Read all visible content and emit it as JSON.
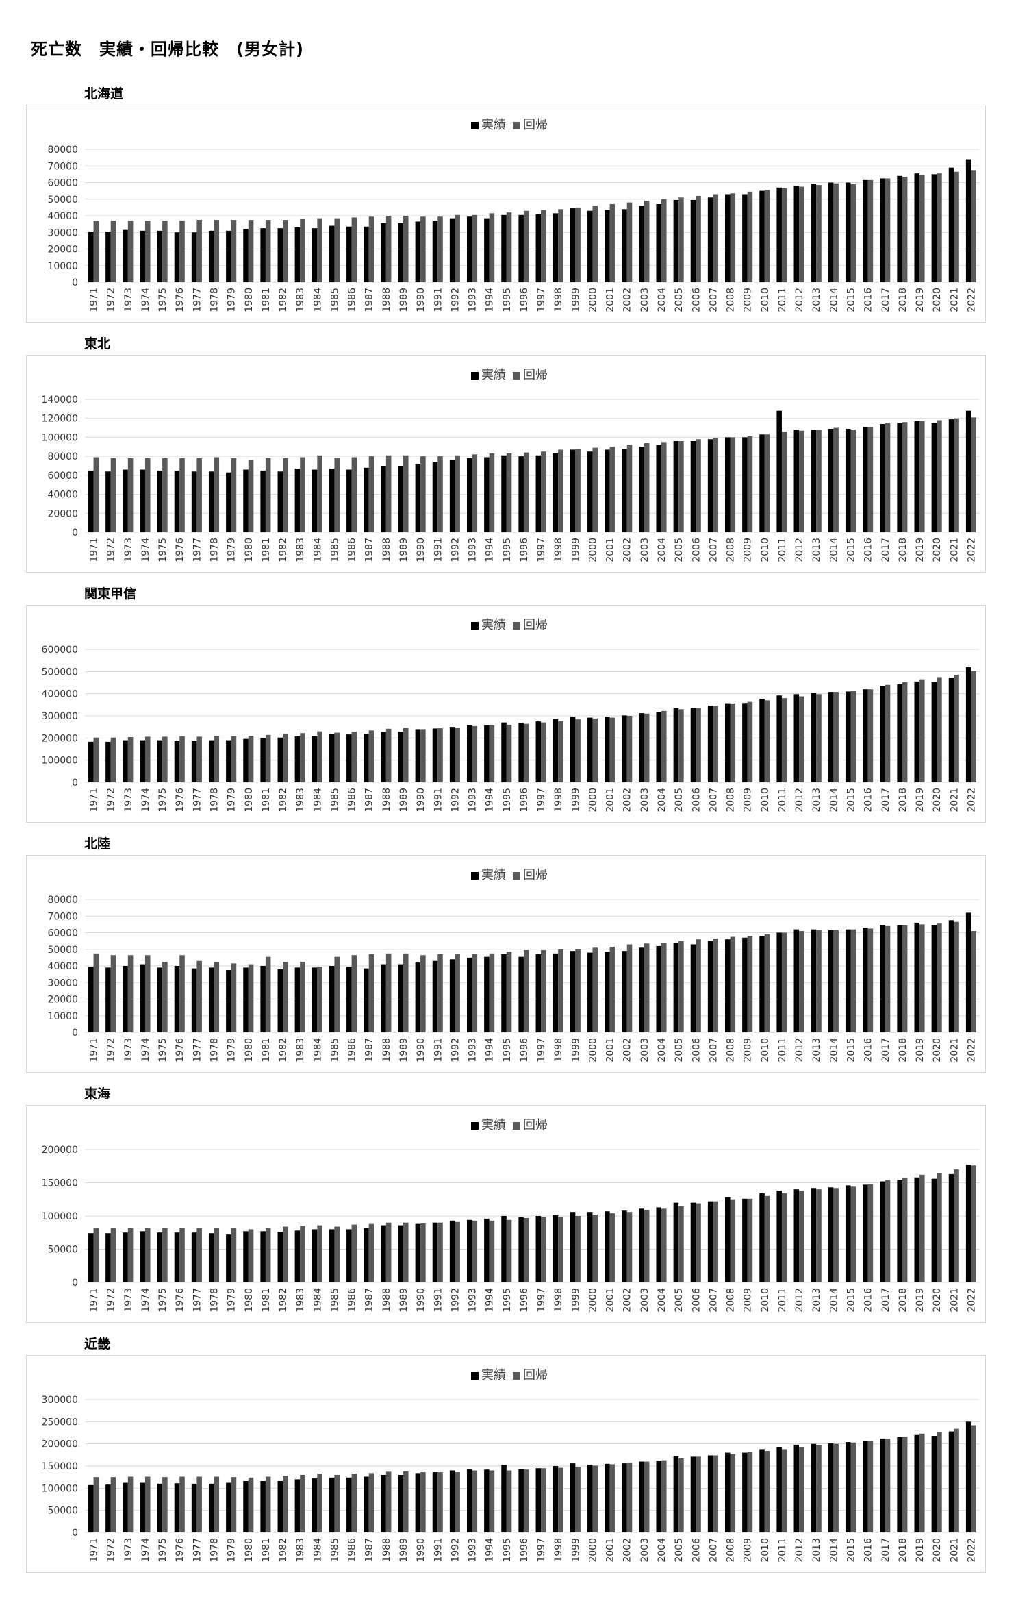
{
  "page_title": "死亡数　実績・回帰比較　(男女計)",
  "colors": {
    "actual": "#000000",
    "regression": "#595959",
    "grid": "#d9d9d9"
  },
  "chart_data": [
    {
      "type": "bar",
      "title": "北海道",
      "legend": [
        "実績",
        "回帰"
      ],
      "categories": [
        1971,
        1972,
        1973,
        1974,
        1975,
        1976,
        1977,
        1978,
        1979,
        1980,
        1981,
        1982,
        1983,
        1984,
        1985,
        1986,
        1987,
        1988,
        1989,
        1990,
        1991,
        1992,
        1993,
        1994,
        1995,
        1996,
        1997,
        1998,
        1999,
        2000,
        2001,
        2002,
        2003,
        2004,
        2005,
        2006,
        2007,
        2008,
        2009,
        2010,
        2011,
        2012,
        2013,
        2014,
        2015,
        2016,
        2017,
        2018,
        2019,
        2020,
        2021,
        2022
      ],
      "yticks": [
        0,
        10000,
        20000,
        30000,
        40000,
        50000,
        60000,
        70000,
        80000
      ],
      "ylim": [
        0,
        80000
      ],
      "series": [
        {
          "name": "実績",
          "values": [
            30500,
            30500,
            31500,
            31000,
            31000,
            30000,
            30000,
            31000,
            31000,
            32000,
            32500,
            32500,
            33000,
            32500,
            34000,
            33500,
            33500,
            35500,
            35500,
            36500,
            37000,
            38500,
            39500,
            38500,
            40500,
            40500,
            41000,
            41500,
            44500,
            43000,
            43500,
            44000,
            46000,
            47000,
            49500,
            49500,
            51000,
            53000,
            53000,
            55000,
            57000,
            58000,
            59000,
            60000,
            60000,
            61500,
            62500,
            64000,
            65500,
            65000,
            69000,
            74000
          ]
        },
        {
          "name": "回帰",
          "values": [
            37000,
            37000,
            37000,
            37000,
            37000,
            37000,
            37500,
            37500,
            37500,
            37500,
            37500,
            37500,
            38000,
            38500,
            38500,
            39000,
            39500,
            40000,
            40000,
            39500,
            39500,
            40500,
            40500,
            41500,
            42000,
            43000,
            43500,
            44000,
            45000,
            46000,
            47000,
            48000,
            49000,
            50000,
            51000,
            52000,
            53000,
            53500,
            54500,
            55500,
            56500,
            57500,
            58500,
            59500,
            59000,
            61500,
            62500,
            63500,
            64500,
            65500,
            66500,
            67500
          ]
        }
      ]
    },
    {
      "type": "bar",
      "title": "東北",
      "legend": [
        "実績",
        "回帰"
      ],
      "categories": [
        1971,
        1972,
        1973,
        1974,
        1975,
        1976,
        1977,
        1978,
        1979,
        1980,
        1981,
        1982,
        1983,
        1984,
        1985,
        1986,
        1987,
        1988,
        1989,
        1990,
        1991,
        1992,
        1993,
        1994,
        1995,
        1996,
        1997,
        1998,
        1999,
        2000,
        2001,
        2002,
        2003,
        2004,
        2005,
        2006,
        2007,
        2008,
        2009,
        2010,
        2011,
        2012,
        2013,
        2014,
        2015,
        2016,
        2017,
        2018,
        2019,
        2020,
        2021,
        2022
      ],
      "yticks": [
        0,
        20000,
        40000,
        60000,
        80000,
        100000,
        120000,
        140000
      ],
      "ylim": [
        0,
        140000
      ],
      "series": [
        {
          "name": "実績",
          "values": [
            65000,
            64000,
            66000,
            66000,
            65000,
            65000,
            64000,
            64000,
            63000,
            66000,
            65000,
            64000,
            67000,
            66000,
            67000,
            66000,
            68000,
            70000,
            70000,
            72000,
            74000,
            76000,
            78000,
            79000,
            81000,
            80000,
            81000,
            83000,
            87000,
            85000,
            87000,
            88000,
            90000,
            92000,
            96000,
            96000,
            98000,
            100000,
            100000,
            103000,
            128000,
            108000,
            108000,
            109000,
            109000,
            111000,
            114000,
            115000,
            117000,
            115000,
            119000,
            128000
          ]
        },
        {
          "name": "回帰",
          "values": [
            79000,
            78000,
            78000,
            78000,
            78000,
            78000,
            78000,
            79000,
            78000,
            76000,
            78000,
            78000,
            79000,
            81000,
            78000,
            79000,
            80000,
            81000,
            81000,
            80000,
            80000,
            81000,
            82000,
            83000,
            83000,
            84000,
            85000,
            87000,
            88000,
            89000,
            90000,
            92000,
            94000,
            95000,
            96000,
            98000,
            99000,
            100000,
            101000,
            103000,
            106000,
            107000,
            108000,
            110000,
            108000,
            111000,
            115000,
            116000,
            117000,
            118000,
            120000,
            121000
          ]
        }
      ]
    },
    {
      "type": "bar",
      "title": "関東甲信",
      "legend": [
        "実績",
        "回帰"
      ],
      "categories": [
        1971,
        1972,
        1973,
        1974,
        1975,
        1976,
        1977,
        1978,
        1979,
        1980,
        1981,
        1982,
        1983,
        1984,
        1985,
        1986,
        1987,
        1988,
        1989,
        1990,
        1991,
        1992,
        1993,
        1994,
        1995,
        1996,
        1997,
        1998,
        1999,
        2000,
        2001,
        2002,
        2003,
        2004,
        2005,
        2006,
        2007,
        2008,
        2009,
        2010,
        2011,
        2012,
        2013,
        2014,
        2015,
        2016,
        2017,
        2018,
        2019,
        2020,
        2021,
        2022
      ],
      "yticks": [
        0,
        100000,
        200000,
        300000,
        400000,
        500000,
        600000
      ],
      "ylim": [
        0,
        600000
      ],
      "series": [
        {
          "name": "実績",
          "values": [
            183000,
            183000,
            190000,
            190000,
            190000,
            188000,
            188000,
            190000,
            190000,
            196000,
            200000,
            202000,
            208000,
            210000,
            218000,
            216000,
            219000,
            228000,
            228000,
            240000,
            243000,
            250000,
            258000,
            257000,
            270000,
            268000,
            275000,
            285000,
            297000,
            292000,
            297000,
            302000,
            312000,
            318000,
            335000,
            337000,
            346000,
            357000,
            358000,
            377000,
            392000,
            398000,
            404000,
            408000,
            410000,
            420000,
            435000,
            443000,
            455000,
            452000,
            472000,
            520000
          ]
        },
        {
          "name": "回帰",
          "values": [
            202000,
            202000,
            204000,
            206000,
            206000,
            208000,
            206000,
            210000,
            208000,
            210000,
            214000,
            218000,
            222000,
            230000,
            224000,
            228000,
            234000,
            242000,
            246000,
            240000,
            244000,
            246000,
            254000,
            258000,
            260000,
            264000,
            270000,
            276000,
            284000,
            288000,
            292000,
            300000,
            310000,
            322000,
            330000,
            334000,
            345000,
            356000,
            363000,
            370000,
            380000,
            388000,
            398000,
            408000,
            414000,
            420000,
            440000,
            452000,
            465000,
            475000,
            485000,
            502000
          ]
        }
      ]
    },
    {
      "type": "bar",
      "title": "北陸",
      "legend": [
        "実績",
        "回帰"
      ],
      "categories": [
        1971,
        1972,
        1973,
        1974,
        1975,
        1976,
        1977,
        1978,
        1979,
        1980,
        1981,
        1982,
        1983,
        1984,
        1985,
        1986,
        1987,
        1988,
        1989,
        1990,
        1991,
        1992,
        1993,
        1994,
        1995,
        1996,
        1997,
        1998,
        1999,
        2000,
        2001,
        2002,
        2003,
        2004,
        2005,
        2006,
        2007,
        2008,
        2009,
        2010,
        2011,
        2012,
        2013,
        2014,
        2015,
        2016,
        2017,
        2018,
        2019,
        2020,
        2021,
        2022
      ],
      "yticks": [
        0,
        10000,
        20000,
        30000,
        40000,
        50000,
        60000,
        70000,
        80000
      ],
      "ylim": [
        0,
        80000
      ],
      "series": [
        {
          "name": "実績",
          "values": [
            39500,
            39000,
            40000,
            41000,
            39000,
            40000,
            38500,
            39000,
            37500,
            39000,
            40000,
            38000,
            39000,
            39000,
            40000,
            39500,
            38500,
            41000,
            41000,
            42000,
            43000,
            44000,
            45000,
            45500,
            47000,
            45500,
            47000,
            47500,
            49000,
            48000,
            48500,
            49000,
            51000,
            52000,
            54000,
            53000,
            55000,
            56000,
            57000,
            58000,
            60000,
            62000,
            62000,
            61500,
            62000,
            63000,
            64500,
            64500,
            66000,
            64500,
            67500,
            72000
          ]
        },
        {
          "name": "回帰",
          "values": [
            47500,
            46500,
            46500,
            46500,
            42500,
            46500,
            43000,
            42500,
            41500,
            41000,
            45500,
            42500,
            42500,
            39500,
            45500,
            46500,
            47000,
            47500,
            47500,
            46500,
            47000,
            47000,
            47000,
            47500,
            48500,
            49500,
            49500,
            50000,
            50000,
            51000,
            51500,
            53000,
            53500,
            54000,
            55000,
            56000,
            56500,
            57500,
            58000,
            59000,
            60000,
            61000,
            61500,
            61500,
            62000,
            62500,
            64000,
            64500,
            65000,
            65500,
            66500,
            61000
          ]
        }
      ]
    },
    {
      "type": "bar",
      "title": "東海",
      "legend": [
        "実績",
        "回帰"
      ],
      "categories": [
        1971,
        1972,
        1973,
        1974,
        1975,
        1976,
        1977,
        1978,
        1979,
        1980,
        1981,
        1982,
        1983,
        1984,
        1985,
        1986,
        1987,
        1988,
        1989,
        1990,
        1991,
        1992,
        1993,
        1994,
        1995,
        1996,
        1997,
        1998,
        1999,
        2000,
        2001,
        2002,
        2003,
        2004,
        2005,
        2006,
        2007,
        2008,
        2009,
        2010,
        2011,
        2012,
        2013,
        2014,
        2015,
        2016,
        2017,
        2018,
        2019,
        2020,
        2021,
        2022
      ],
      "yticks": [
        0,
        50000,
        100000,
        150000,
        200000
      ],
      "ylim": [
        0,
        200000
      ],
      "series": [
        {
          "name": "実績",
          "values": [
            74000,
            74000,
            75000,
            77000,
            75000,
            75000,
            75000,
            74000,
            72000,
            77000,
            77000,
            76000,
            78000,
            80000,
            80000,
            80000,
            82000,
            86000,
            86000,
            88000,
            90000,
            93000,
            94000,
            96000,
            100000,
            98000,
            100000,
            101000,
            106000,
            106000,
            107000,
            108000,
            111000,
            113000,
            120000,
            120000,
            122000,
            128000,
            126000,
            134000,
            138000,
            140000,
            142000,
            143000,
            146000,
            147000,
            152000,
            154000,
            158000,
            156000,
            163000,
            177000
          ]
        },
        {
          "name": "回帰",
          "values": [
            82000,
            82000,
            82000,
            82000,
            82000,
            82000,
            82000,
            82000,
            82000,
            80000,
            82000,
            84000,
            85000,
            86000,
            84000,
            87000,
            88000,
            90000,
            90000,
            89000,
            90000,
            91000,
            93000,
            93000,
            94000,
            97000,
            98000,
            99000,
            100000,
            102000,
            104000,
            106000,
            109000,
            111000,
            115000,
            119000,
            122000,
            125000,
            126000,
            130000,
            134000,
            138000,
            140000,
            142000,
            144000,
            148000,
            154000,
            157000,
            162000,
            164000,
            170000,
            176000
          ]
        }
      ]
    },
    {
      "type": "bar",
      "title": "近畿",
      "legend": [
        "実績",
        "回帰"
      ],
      "categories": [
        1971,
        1972,
        1973,
        1974,
        1975,
        1976,
        1977,
        1978,
        1979,
        1980,
        1981,
        1982,
        1983,
        1984,
        1985,
        1986,
        1987,
        1988,
        1989,
        1990,
        1991,
        1992,
        1993,
        1994,
        1995,
        1996,
        1997,
        1998,
        1999,
        2000,
        2001,
        2002,
        2003,
        2004,
        2005,
        2006,
        2007,
        2008,
        2009,
        2010,
        2011,
        2012,
        2013,
        2014,
        2015,
        2016,
        2017,
        2018,
        2019,
        2020,
        2021,
        2022
      ],
      "yticks": [
        0,
        50000,
        100000,
        150000,
        200000,
        250000,
        300000
      ],
      "ylim": [
        0,
        300000
      ],
      "series": [
        {
          "name": "実績",
          "values": [
            107000,
            108000,
            112000,
            112000,
            110000,
            111000,
            110000,
            110000,
            112000,
            116000,
            116000,
            116000,
            120000,
            122000,
            124000,
            124000,
            126000,
            130000,
            130000,
            134000,
            136000,
            140000,
            143000,
            142000,
            153000,
            143000,
            145000,
            150000,
            156000,
            153000,
            155000,
            156000,
            160000,
            162000,
            172000,
            171000,
            174000,
            180000,
            180000,
            188000,
            193000,
            198000,
            200000,
            201000,
            204000,
            206000,
            212000,
            215000,
            220000,
            218000,
            228000,
            250000
          ]
        },
        {
          "name": "回帰",
          "values": [
            125000,
            125000,
            126000,
            126000,
            125000,
            126000,
            126000,
            126000,
            125000,
            124000,
            126000,
            128000,
            130000,
            133000,
            130000,
            133000,
            134000,
            137000,
            138000,
            136000,
            136000,
            136000,
            140000,
            140000,
            140000,
            142000,
            145000,
            146000,
            148000,
            151000,
            154000,
            157000,
            160000,
            163000,
            167000,
            171000,
            174000,
            177000,
            181000,
            184000,
            188000,
            193000,
            197000,
            200000,
            203000,
            206000,
            212000,
            216000,
            223000,
            226000,
            234000,
            242000
          ]
        }
      ]
    }
  ]
}
